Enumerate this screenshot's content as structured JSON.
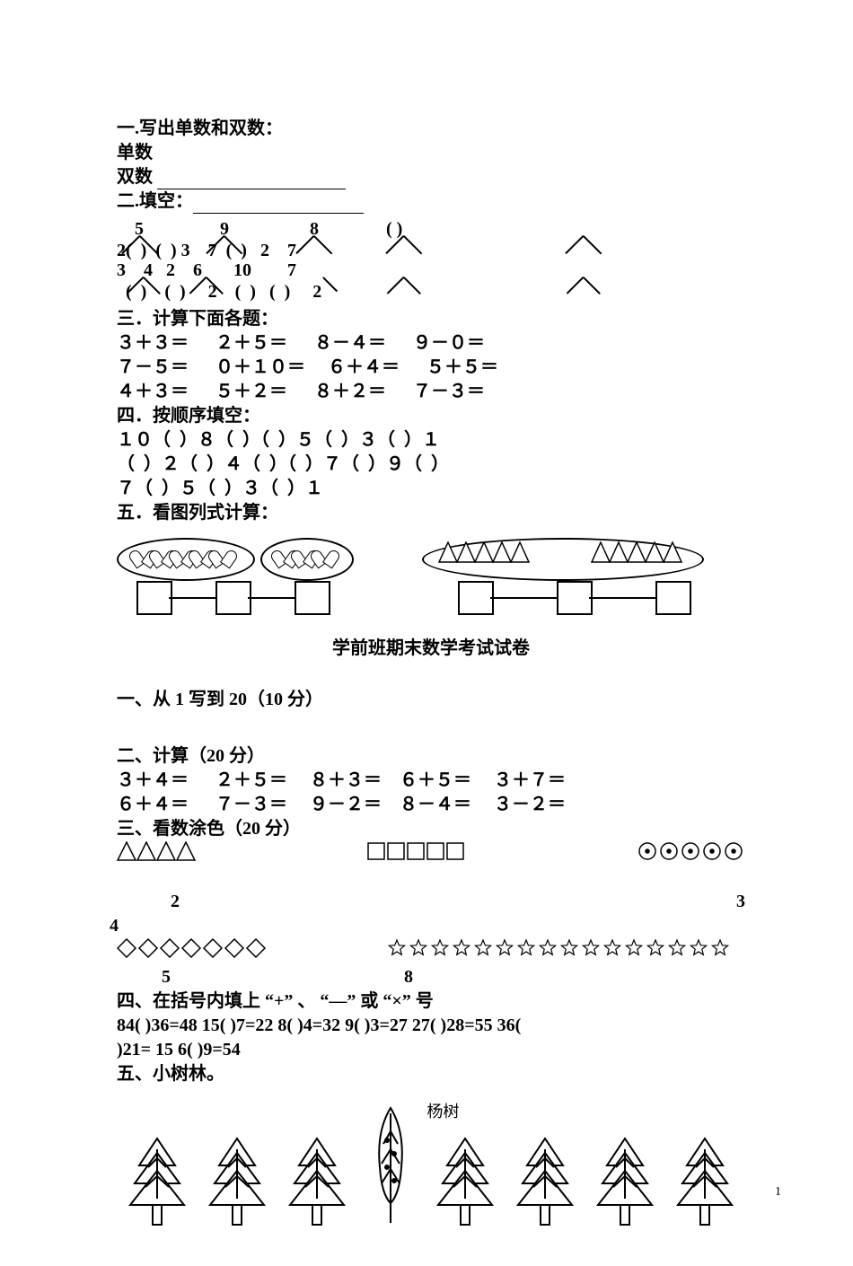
{
  "s1": {
    "title": "一.写出单数和双数：",
    "odd_label": "单数",
    "even_label": "双数"
  },
  "s2": {
    "title": "二.填空：",
    "top_row": [
      "5",
      "9",
      "8",
      "(  )"
    ],
    "mid_rows": [
      "2(  )  (  ) 3    7  (  )   2    7",
      "3    4   2    6       10        7"
    ],
    "bottom_row": "  (  )    (  )     2    (  )   (  )     2"
  },
  "s3": {
    "title": "三．计算下面各题：",
    "rows": [
      "３＋３＝      ２＋５＝      ８－４＝      ９－０＝",
      "７－５＝      ０＋１０＝     ６＋４＝      ５＋５＝",
      "４＋３＝      ５＋２＝      ８＋２＝      ７－３＝"
    ]
  },
  "s4": {
    "title": "四．按顺序填空：",
    "rows": [
      "１０（  ）８（  ）（  ）５（  ）３（  ）１",
      "（  ）２（  ）４（  ）（  ）７（  ）９（  ）",
      "７（  ）５（  ）３（  ）１"
    ]
  },
  "s5": {
    "title": "五．看图列式计算："
  },
  "exam_title": "学前班期末数学考试试卷",
  "q1": {
    "title": "一、从 1 写到 20（10 分）"
  },
  "q2": {
    "title": "二、计算（20 分）",
    "rows": [
      "３＋４＝      ２＋５＝     ８＋３＝    ６＋５＝     ３＋７＝",
      "６＋４＝      ７－３＝     ９－２＝    ８－４＝     ３－２＝"
    ]
  },
  "q3": {
    "title": "三、看数涂色（20 分）",
    "shape_counts": {
      "triangles": 4,
      "squares": 5,
      "circles": 5,
      "diamonds": 7,
      "stars": 16
    },
    "nums_row1_a": "2",
    "nums_row1_b": "3",
    "nums_row1_c": "4",
    "nums_row2_a": "5",
    "nums_row2_b": "8"
  },
  "q4": {
    "title": "四、在括号内填上 “+” 、 “—” 或 “×” 号",
    "line1": " 84(   )36=48   15(   )7=22   8(   )4=32   9(   )3=27    27(    )28=55   36(",
    "line2": "  )21= 15    6(   )9=54"
  },
  "q5": {
    "title": "五、小树林。",
    "poplar_label": "杨树"
  },
  "page_number": "1",
  "colors": {
    "text": "#000000",
    "bg": "#ffffff"
  }
}
